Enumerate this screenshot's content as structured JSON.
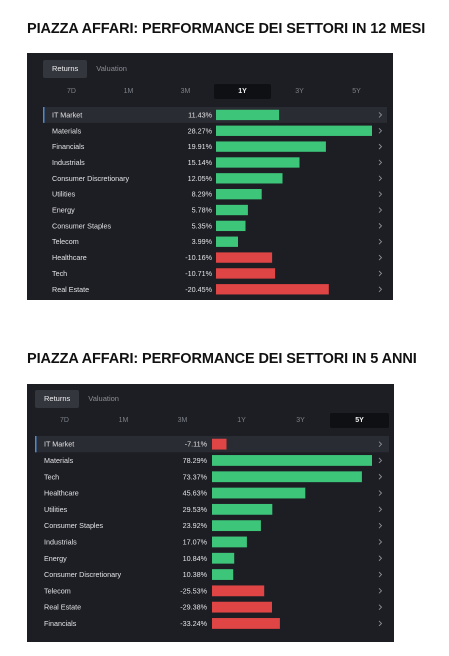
{
  "charts": [
    {
      "title": "PIAZZA AFFARI: PERFORMANCE DEI SETTORI IN 12 MESI",
      "tabs": [
        {
          "label": "Returns",
          "active": true
        },
        {
          "label": "Valuation",
          "active": false
        }
      ],
      "periods": [
        {
          "label": "7D",
          "active": false
        },
        {
          "label": "1M",
          "active": false
        },
        {
          "label": "3M",
          "active": false
        },
        {
          "label": "1Y",
          "active": true
        },
        {
          "label": "3Y",
          "active": false
        },
        {
          "label": "5Y",
          "active": false
        }
      ]
    },
    {
      "title": "PIAZZA AFFARI: PERFORMANCE DEI SETTORI IN 5 ANNI",
      "tabs": [
        {
          "label": "Returns",
          "active": true
        },
        {
          "label": "Valuation",
          "active": false
        }
      ],
      "periods": [
        {
          "label": "7D",
          "active": false
        },
        {
          "label": "1M",
          "active": false
        },
        {
          "label": "3M",
          "active": false
        },
        {
          "label": "1Y",
          "active": false
        },
        {
          "label": "3Y",
          "active": false
        },
        {
          "label": "5Y",
          "active": true
        }
      ]
    }
  ],
  "colors": {
    "positive": "#3dc57a",
    "negative": "#e04545",
    "highlight_row": "#2a2c33"
  },
  "chart_data": [
    {
      "type": "bar",
      "orientation": "horizontal",
      "title": "PIAZZA AFFARI: PERFORMANCE DEI SETTORI IN 12 MESI",
      "categories": [
        "IT Market",
        "Materials",
        "Financials",
        "Industrials",
        "Consumer Discretionary",
        "Utilities",
        "Energy",
        "Consumer Staples",
        "Telecom",
        "Healthcare",
        "Tech",
        "Real Estate"
      ],
      "values": [
        11.43,
        28.27,
        19.91,
        15.14,
        12.05,
        8.29,
        5.78,
        5.35,
        3.99,
        -10.16,
        -10.71,
        -20.45
      ],
      "labels": [
        "11.43%",
        "28.27%",
        "19.91%",
        "15.14%",
        "12.05%",
        "8.29%",
        "5.78%",
        "5.35%",
        "3.99%",
        "-10.16%",
        "-10.71%",
        "-20.45%"
      ],
      "unit": "%"
    },
    {
      "type": "bar",
      "orientation": "horizontal",
      "title": "PIAZZA AFFARI: PERFORMANCE DEI SETTORI IN 5 ANNI",
      "categories": [
        "IT Market",
        "Materials",
        "Tech",
        "Healthcare",
        "Utilities",
        "Consumer Staples",
        "Industrials",
        "Energy",
        "Consumer Discretionary",
        "Telecom",
        "Real Estate",
        "Financials"
      ],
      "values": [
        -7.11,
        78.29,
        73.37,
        45.63,
        29.53,
        23.92,
        17.07,
        10.84,
        10.38,
        -25.53,
        -29.38,
        -33.24
      ],
      "labels": [
        "-7.11%",
        "78.29%",
        "73.37%",
        "45.63%",
        "29.53%",
        "23.92%",
        "17.07%",
        "10.84%",
        "10.38%",
        "-25.53%",
        "-29.38%",
        "-33.24%"
      ],
      "unit": "%"
    }
  ]
}
